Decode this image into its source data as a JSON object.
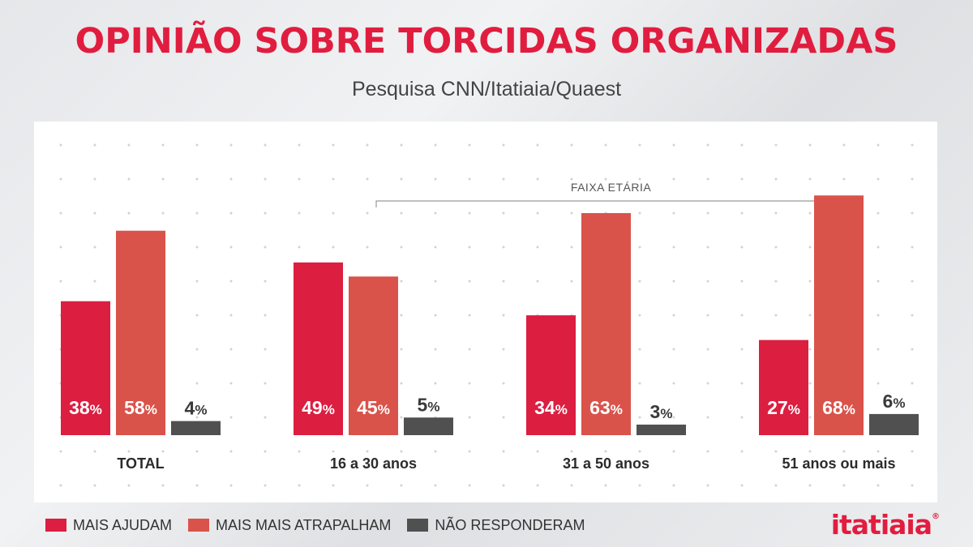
{
  "header": {
    "title": "OPINIÃO SOBRE TORCIDAS ORGANIZADAS",
    "subtitle": "Pesquisa CNN/Itatiaia/Quaest"
  },
  "colors": {
    "mais_ajudam": "#dc1e40",
    "mais_atrapalham": "#d9534a",
    "nao_responderam": "#505050",
    "brand": "#e11d3f"
  },
  "chart_data": {
    "type": "bar",
    "categories": [
      "TOTAL",
      "16 a 30 anos",
      "31 a 50 anos",
      "51 anos ou mais"
    ],
    "group_annotation": {
      "label": "FAIXA ETÁRIA",
      "spans": [
        "16 a 30 anos",
        "51 anos ou mais"
      ]
    },
    "unit": "%",
    "series": [
      {
        "name": "MAIS AJUDAM",
        "values": [
          38,
          49,
          34,
          27
        ]
      },
      {
        "name": "MAIS MAIS ATRAPALHAM",
        "values": [
          58,
          45,
          63,
          68
        ]
      },
      {
        "name": "NÃO RESPONDERAM",
        "values": [
          4,
          5,
          3,
          6
        ]
      }
    ],
    "legend_position": "bottom-left",
    "grid": false
  },
  "brand": {
    "logo_text": "itatiaia",
    "logo_mark": "®"
  }
}
